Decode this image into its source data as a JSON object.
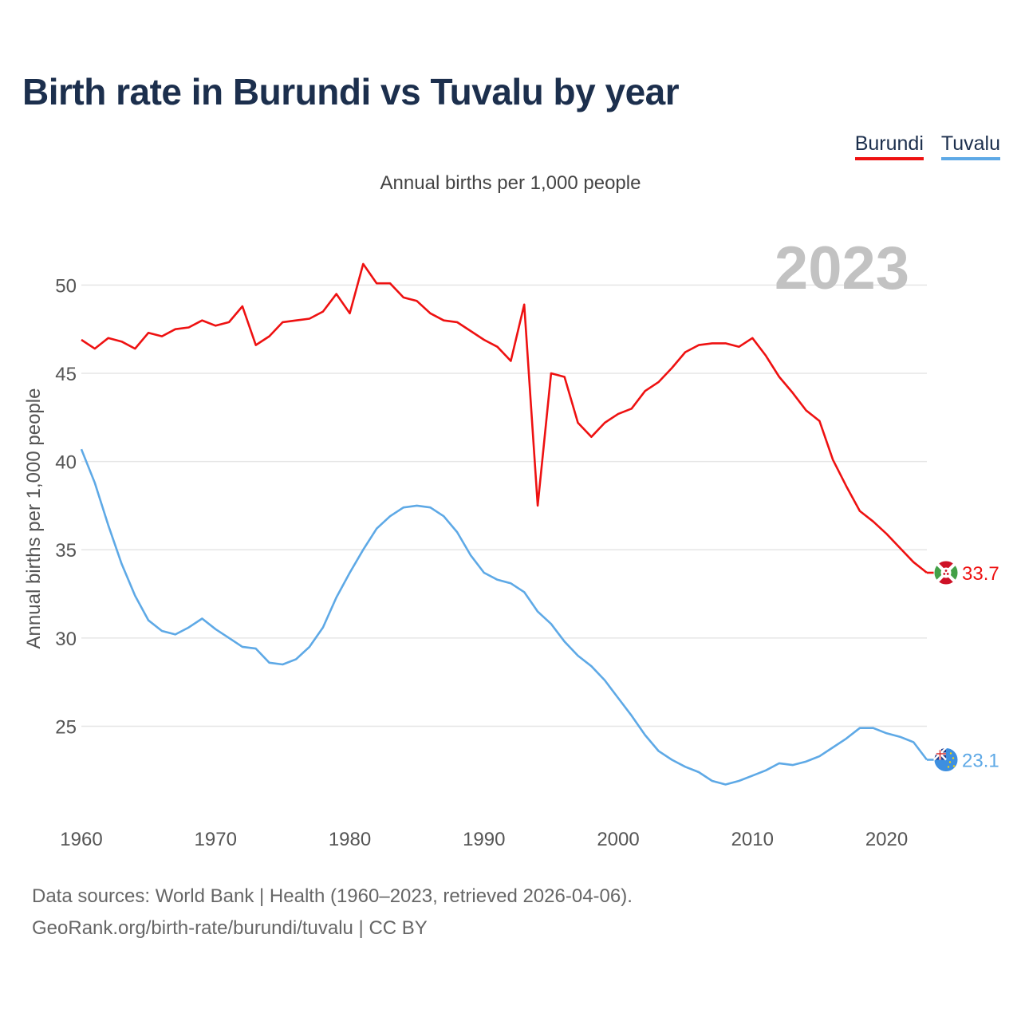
{
  "title": "Birth rate in Burundi vs Tuvalu by year",
  "subtitle": "Annual births per 1,000 people",
  "legend": [
    {
      "name": "Burundi",
      "color": "#ee1111"
    },
    {
      "name": "Tuvalu",
      "color": "#5ea9e6"
    }
  ],
  "footer": {
    "line1": "Data sources: World Bank | Health (1960–2023, retrieved 2026-04-06).",
    "line2": "GeoRank.org/birth-rate/burundi/tuvalu | CC BY"
  },
  "chart_data": {
    "type": "line",
    "title": "Birth rate in Burundi vs Tuvalu by year",
    "ylabel": "Annual births per 1,000 people",
    "xlabel": "",
    "xlim": [
      1960,
      2023
    ],
    "ylim": [
      20.5,
      53.5
    ],
    "xticks": [
      1960,
      1970,
      1980,
      1990,
      2000,
      2010,
      2020
    ],
    "yticks": [
      25,
      30,
      35,
      40,
      45,
      50
    ],
    "watermark_year": "2023",
    "grid": true,
    "legend_position": "top-right",
    "x": [
      1960,
      1961,
      1962,
      1963,
      1964,
      1965,
      1966,
      1967,
      1968,
      1969,
      1970,
      1971,
      1972,
      1973,
      1974,
      1975,
      1976,
      1977,
      1978,
      1979,
      1980,
      1981,
      1982,
      1983,
      1984,
      1985,
      1986,
      1987,
      1988,
      1989,
      1990,
      1991,
      1992,
      1993,
      1994,
      1995,
      1996,
      1997,
      1998,
      1999,
      2000,
      2001,
      2002,
      2003,
      2004,
      2005,
      2006,
      2007,
      2008,
      2009,
      2010,
      2011,
      2012,
      2013,
      2014,
      2015,
      2016,
      2017,
      2018,
      2019,
      2020,
      2021,
      2022,
      2023
    ],
    "series": [
      {
        "name": "Burundi",
        "color": "#ee1111",
        "end_label": "33.7",
        "flag": "burundi-flag-icon",
        "values": [
          46.9,
          46.4,
          47.0,
          46.8,
          46.4,
          47.3,
          47.1,
          47.5,
          47.6,
          48.0,
          47.7,
          47.9,
          48.8,
          46.6,
          47.1,
          47.9,
          48.0,
          48.1,
          48.5,
          49.5,
          48.4,
          51.2,
          50.1,
          50.1,
          49.3,
          49.1,
          48.4,
          48.0,
          47.9,
          47.4,
          46.9,
          46.5,
          45.7,
          48.9,
          37.5,
          45.0,
          44.8,
          42.2,
          41.4,
          42.2,
          42.7,
          43.0,
          44.0,
          44.5,
          45.3,
          46.2,
          46.6,
          46.7,
          46.7,
          46.5,
          47.0,
          46.0,
          44.8,
          43.9,
          42.9,
          42.3,
          40.1,
          38.6,
          37.2,
          36.6,
          35.9,
          35.1,
          34.3,
          33.7
        ]
      },
      {
        "name": "Tuvalu",
        "color": "#5ea9e6",
        "end_label": "23.1",
        "flag": "tuvalu-flag-icon",
        "values": [
          40.7,
          38.8,
          36.4,
          34.2,
          32.4,
          31.0,
          30.4,
          30.2,
          30.6,
          31.1,
          30.5,
          30.0,
          29.5,
          29.4,
          28.6,
          28.5,
          28.8,
          29.5,
          30.6,
          32.3,
          33.7,
          35.0,
          36.2,
          36.9,
          37.4,
          37.5,
          37.4,
          36.9,
          36.0,
          34.7,
          33.7,
          33.3,
          33.1,
          32.6,
          31.5,
          30.8,
          29.8,
          29.0,
          28.4,
          27.6,
          26.6,
          25.6,
          24.5,
          23.6,
          23.1,
          22.7,
          22.4,
          21.9,
          21.7,
          21.9,
          22.2,
          22.5,
          22.9,
          22.8,
          23.0,
          23.3,
          23.8,
          24.3,
          24.9,
          24.9,
          24.6,
          24.4,
          24.1,
          23.1
        ]
      }
    ]
  }
}
